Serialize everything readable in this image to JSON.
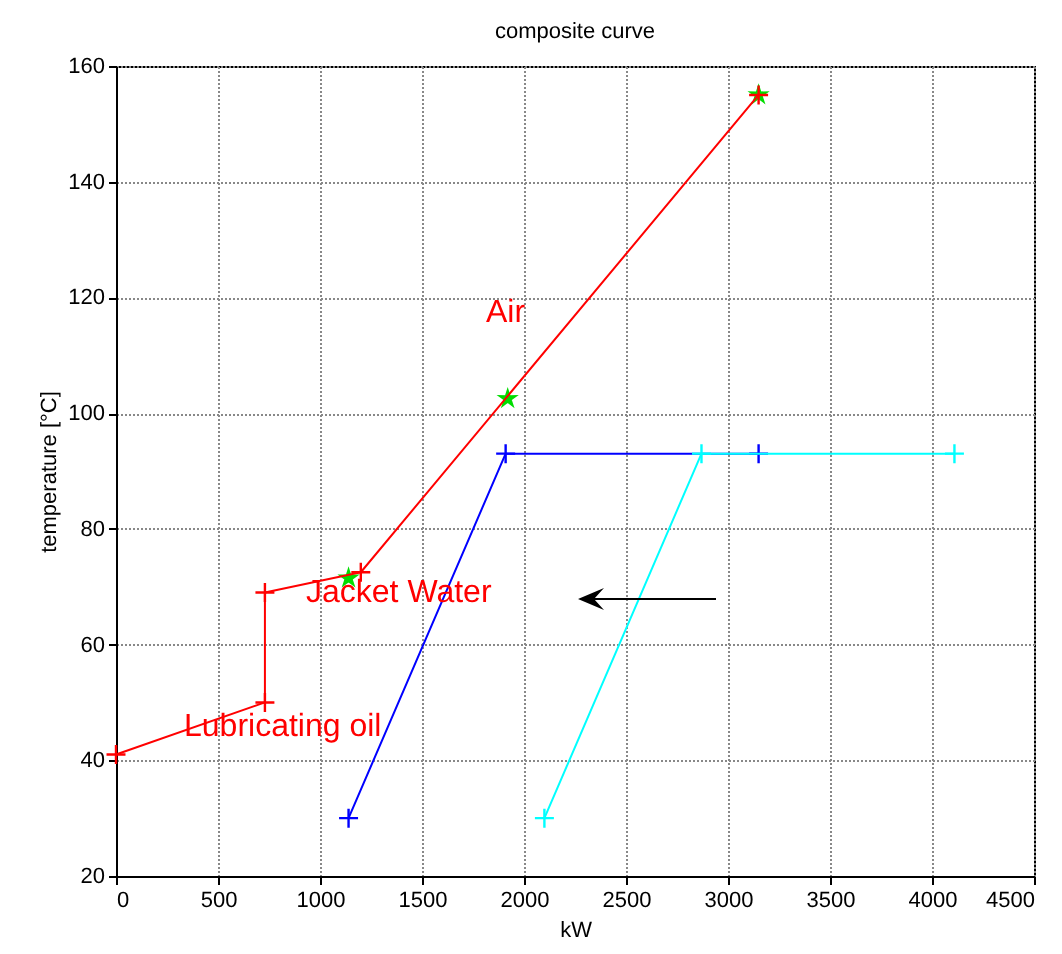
{
  "chart_data": {
    "type": "line",
    "title": "composite curve",
    "xlabel": "kW",
    "ylabel": "temperature [°C]",
    "series": [
      {
        "color": "#ff0000",
        "marker": "cross",
        "x": [
          0,
          730,
          730,
          1200,
          3150
        ],
        "values": [
          41,
          50,
          69,
          72.5,
          155
        ]
      },
      {
        "type": "scatter",
        "color": "#00dd00",
        "marker": "star",
        "x": [
          1140,
          1920,
          3150
        ],
        "values": [
          71.5,
          102.5,
          155
        ]
      },
      {
        "color": "#0000ff",
        "marker": "cross",
        "x": [
          1140,
          1910,
          3150
        ],
        "values": [
          30,
          93,
          93
        ]
      },
      {
        "color": "#00ffff",
        "marker": "cross",
        "x": [
          2100,
          2870,
          4110
        ],
        "values": [
          30,
          93,
          93
        ]
      }
    ],
    "annotations": [
      "Air",
      "Jacket Water",
      "Lubricating oil"
    ],
    "xlim": [
      0,
      4500
    ],
    "xticks": [
      0,
      500,
      1000,
      1500,
      2000,
      2500,
      3000,
      3500,
      4000,
      4500
    ],
    "ylim": [
      20,
      160
    ],
    "yticks": [
      20,
      40,
      60,
      80,
      100,
      120,
      140,
      160
    ],
    "grid": true
  }
}
